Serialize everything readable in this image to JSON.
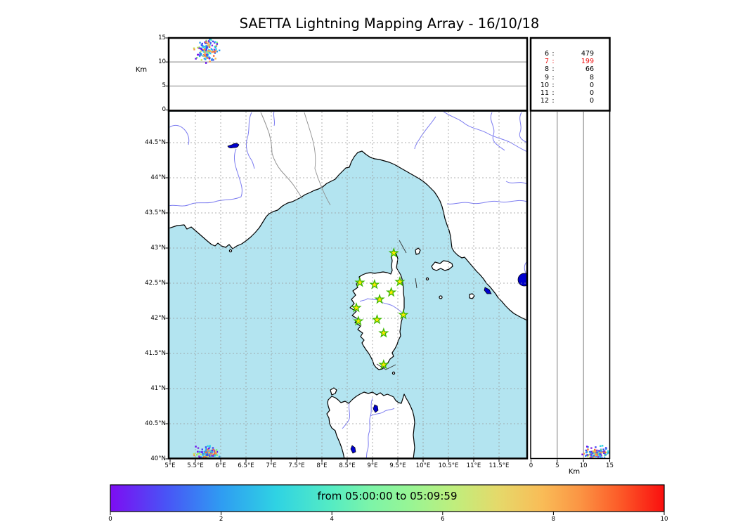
{
  "title": "SAETTA Lightning Mapping Array - 16/10/18",
  "stats": {
    "rows": [
      {
        "level": "6",
        "count": "479"
      },
      {
        "level": "7",
        "count": "199"
      },
      {
        "level": "8",
        "count": "66"
      },
      {
        "level": "9",
        "count": "8"
      },
      {
        "level": "10",
        "count": "0"
      },
      {
        "level": "11",
        "count": "0"
      },
      {
        "level": "12",
        "count": "0"
      }
    ],
    "highlight_level": "7"
  },
  "axes": {
    "alt_label": "Km",
    "alt_ticks": [
      {
        "v": 0,
        "t": "0"
      },
      {
        "v": 5,
        "t": "5"
      },
      {
        "v": 10,
        "t": "10"
      },
      {
        "v": 15,
        "t": "15"
      }
    ],
    "lon_ticks": [
      {
        "v": 5,
        "t": "5°E"
      },
      {
        "v": 5.5,
        "t": "5.5°E"
      },
      {
        "v": 6,
        "t": "6°E"
      },
      {
        "v": 6.5,
        "t": "6.5°E"
      },
      {
        "v": 7,
        "t": "7°E"
      },
      {
        "v": 7.5,
        "t": "7.5°E"
      },
      {
        "v": 8,
        "t": "8°E"
      },
      {
        "v": 8.5,
        "t": "8.5°E"
      },
      {
        "v": 9,
        "t": "9°E"
      },
      {
        "v": 9.5,
        "t": "9.5°E"
      },
      {
        "v": 10,
        "t": "10°E"
      },
      {
        "v": 10.5,
        "t": "10.5°E"
      },
      {
        "v": 11,
        "t": "11°E"
      },
      {
        "v": 11.5,
        "t": "11.5°E"
      }
    ],
    "lat_ticks": [
      {
        "v": 40,
        "t": "40°N"
      },
      {
        "v": 40.5,
        "t": "40.5°N"
      },
      {
        "v": 41,
        "t": "41°N"
      },
      {
        "v": 41.5,
        "t": "41.5°N"
      },
      {
        "v": 42,
        "t": "42°N"
      },
      {
        "v": 42.5,
        "t": "42.5°N"
      },
      {
        "v": 43,
        "t": "43°N"
      },
      {
        "v": 43.5,
        "t": "43.5°N"
      },
      {
        "v": 44,
        "t": "44°N"
      },
      {
        "v": 44.5,
        "t": "44.5°N"
      }
    ],
    "cbar_ticks": [
      {
        "v": 0,
        "t": "0"
      },
      {
        "v": 2,
        "t": "2"
      },
      {
        "v": 4,
        "t": "4"
      },
      {
        "v": 6,
        "t": "6"
      },
      {
        "v": 8,
        "t": "8"
      },
      {
        "v": 10,
        "t": "10"
      }
    ]
  },
  "colorbar": {
    "label": "from 05:00:00 to 05:09:59"
  },
  "colors": {
    "sea": "#b3e4f0",
    "land": "#ffffff",
    "coast": "#000000",
    "river": "#7b7bf0",
    "lake": "#0000cd",
    "border_line": "#909090",
    "grid": "#999999",
    "panel_grid": "#808080",
    "star_fill": "#ffe800",
    "star_edge": "#3cb800",
    "highlight": "#ee1111",
    "colorbar_stops": [
      [
        0,
        "#7d0df2"
      ],
      [
        0.1,
        "#4953f6"
      ],
      [
        0.2,
        "#2f9cf2"
      ],
      [
        0.3,
        "#2fd3e3"
      ],
      [
        0.4,
        "#55ecc3"
      ],
      [
        0.47,
        "#7df4a8"
      ],
      [
        0.54,
        "#97f595"
      ],
      [
        0.62,
        "#bfee7d"
      ],
      [
        0.7,
        "#e5d96a"
      ],
      [
        0.78,
        "#f9bc57"
      ],
      [
        0.85,
        "#fb9343"
      ],
      [
        0.92,
        "#fc5a28"
      ],
      [
        1,
        "#fa0f0f"
      ]
    ],
    "dot_palette": [
      [
        "#6a0bf0",
        6
      ],
      [
        "#4040f5",
        10
      ],
      [
        "#2d6cf5",
        10
      ],
      [
        "#2f9cf2",
        12
      ],
      [
        "#2fd3e3",
        15
      ],
      [
        "#55e8c8",
        6
      ],
      [
        "#7df07d",
        6
      ],
      [
        "#c8e85a",
        4
      ],
      [
        "#f5b84f",
        8
      ],
      [
        "#f5944a",
        12
      ],
      [
        "#f56a35",
        8
      ],
      [
        "#8a2be2",
        3
      ]
    ]
  },
  "chart_data": {
    "type": "scatter",
    "title": "SAETTA Lightning Mapping Array - 16/10/18",
    "date": "16/10/18",
    "time_window": {
      "from": "05:00:00",
      "to": "05:09:59"
    },
    "panels": [
      {
        "id": "altitude-vs-longitude",
        "position": "top",
        "ylabel": "Km",
        "y_ticks_km": [
          0,
          5,
          10,
          15
        ],
        "y_range_km": [
          0,
          15
        ],
        "gridlines_km": [
          5,
          10
        ]
      },
      {
        "id": "plan-view-map",
        "position": "center",
        "lon_range_deg_e": [
          5.0,
          12.08
        ],
        "lat_range_deg_n": [
          40.0,
          44.95
        ],
        "grid_step_deg": 0.5
      },
      {
        "id": "altitude-vs-latitude",
        "position": "right",
        "xlabel": "Km",
        "x_ticks_km": [
          0,
          5,
          10,
          15
        ],
        "x_range_km": [
          0,
          15
        ],
        "gridlines_km": [
          5,
          10
        ]
      }
    ],
    "lma_stations_lon_lat_deg": [
      [
        9.42,
        42.93
      ],
      [
        8.75,
        42.51
      ],
      [
        9.04,
        42.48
      ],
      [
        9.54,
        42.52
      ],
      [
        9.37,
        42.37
      ],
      [
        9.14,
        42.27
      ],
      [
        8.68,
        42.15
      ],
      [
        9.61,
        42.05
      ],
      [
        9.09,
        41.98
      ],
      [
        8.72,
        41.96
      ],
      [
        9.22,
        41.79
      ],
      [
        9.22,
        41.34
      ]
    ],
    "flash_cluster": {
      "description": "lightning source cluster at the SW map corner, seen in all three panels",
      "lon_mean_deg_e": 5.72,
      "lon_sd_deg": 0.12,
      "lat_mean_deg_n": 40.07,
      "lat_sd_deg": 0.05,
      "alt_mean_km": 12.4,
      "alt_sd_km": 1.25,
      "count": 130
    },
    "sources_by_min_station_count": [
      {
        "stations": 6,
        "sources": 479
      },
      {
        "stations": 7,
        "sources": 199
      },
      {
        "stations": 8,
        "sources": 66
      },
      {
        "stations": 9,
        "sources": 8
      },
      {
        "stations": 10,
        "sources": 0
      },
      {
        "stations": 11,
        "sources": 0
      },
      {
        "stations": 12,
        "sources": 0
      }
    ],
    "colorbar": {
      "label": "from 05:00:00 to 05:09:59",
      "ticks": [
        0,
        2,
        4,
        6,
        8,
        10
      ],
      "range": [
        0,
        10
      ],
      "colormap": "rainbow"
    }
  }
}
